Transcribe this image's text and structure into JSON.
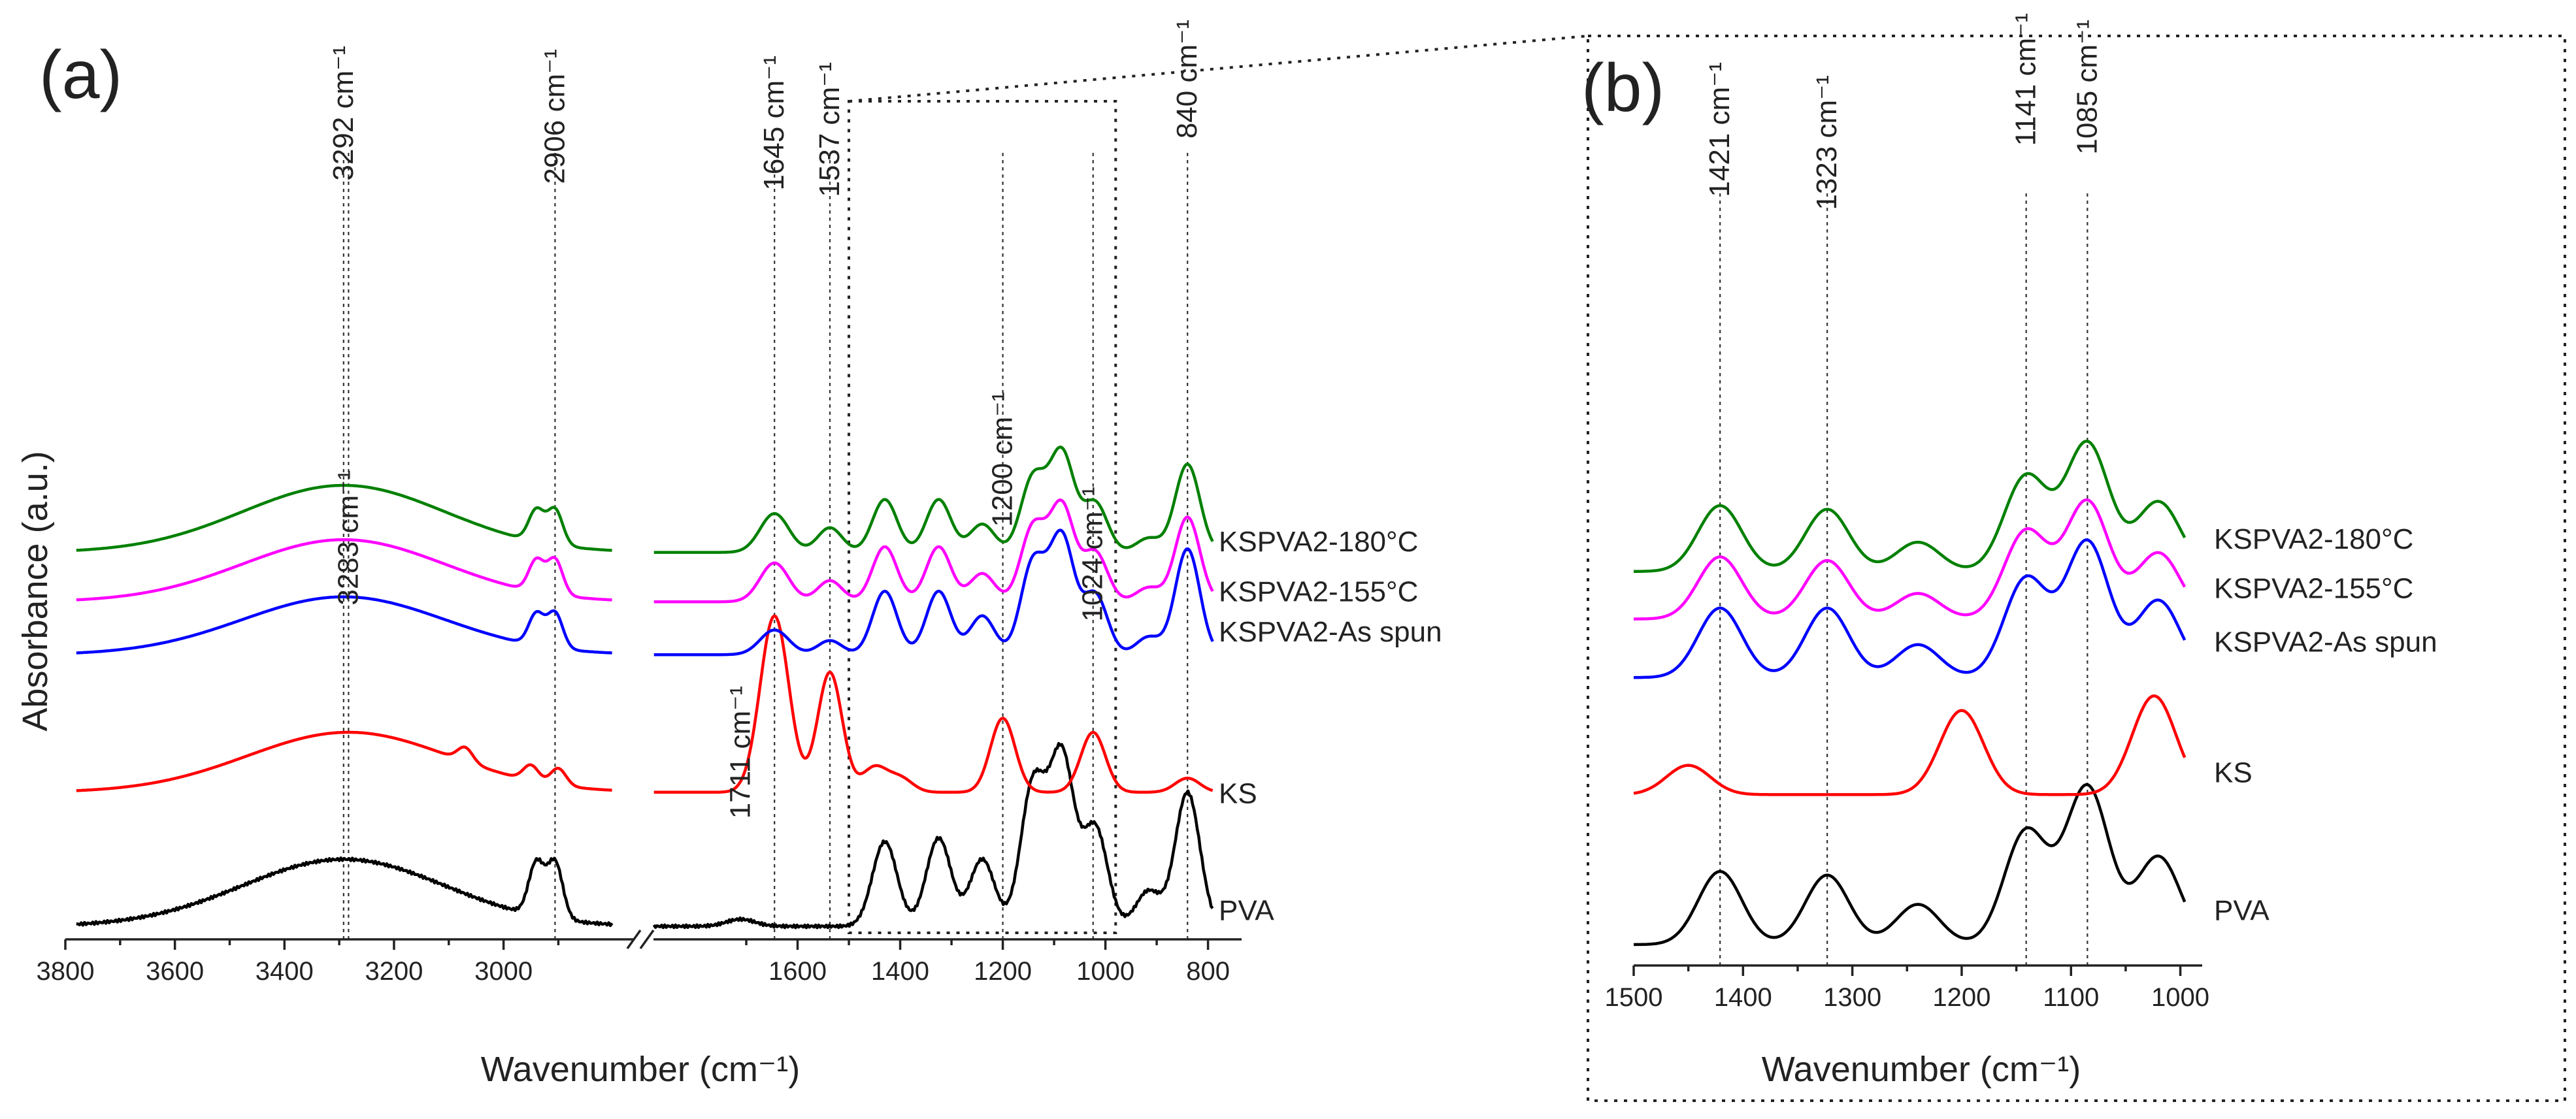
{
  "chart_data": [
    {
      "panel": "(a)",
      "type": "line",
      "xlabel": "Wavenumber (cm⁻¹)",
      "ylabel": "Absorbance (a.u.)",
      "x_axis_broken": true,
      "xlim_left_segment": [
        3800,
        2780
      ],
      "xlim_right_segment": [
        1900,
        760
      ],
      "xticks_left": [
        3800,
        3600,
        3400,
        3200,
        3000
      ],
      "xticks_right": [
        1600,
        1400,
        1200,
        1000,
        800
      ],
      "series": [
        {
          "name": "PVA",
          "color": "#000000",
          "offset": 0.0,
          "peaks": [
            [
              3292,
              0.95
            ],
            [
              2940,
              0.75
            ],
            [
              2906,
              0.8
            ],
            [
              1711,
              0.1
            ],
            [
              1430,
              1.2
            ],
            [
              1325,
              1.25
            ],
            [
              1240,
              0.95
            ],
            [
              1141,
              2.0
            ],
            [
              1085,
              2.4
            ],
            [
              1020,
              1.4
            ],
            [
              916,
              0.5
            ],
            [
              840,
              1.9
            ]
          ]
        },
        {
          "name": "KS",
          "color": "#ff0000",
          "offset": 1.85,
          "peaks": [
            [
              3283,
              0.85
            ],
            [
              3070,
              0.2
            ],
            [
              2950,
              0.22
            ],
            [
              2900,
              0.24
            ],
            [
              1645,
              2.5
            ],
            [
              1537,
              1.7
            ],
            [
              1450,
              0.35
            ],
            [
              1400,
              0.2
            ],
            [
              1200,
              1.05
            ],
            [
              1024,
              0.85
            ],
            [
              840,
              0.2
            ]
          ]
        },
        {
          "name": "KSPVA2-As spun",
          "color": "#0000ff",
          "offset": 3.85,
          "peaks": [
            [
              3292,
              0.82
            ],
            [
              2940,
              0.45
            ],
            [
              2906,
              0.5
            ],
            [
              1645,
              0.35
            ],
            [
              1537,
              0.2
            ],
            [
              1430,
              0.9
            ],
            [
              1325,
              0.9
            ],
            [
              1240,
              0.55
            ],
            [
              1141,
              1.3
            ],
            [
              1085,
              1.65
            ],
            [
              1020,
              0.85
            ],
            [
              916,
              0.25
            ],
            [
              840,
              1.5
            ]
          ]
        },
        {
          "name": "KSPVA2-155°C",
          "color": "#ff00ff",
          "offset": 4.6,
          "peaks": [
            [
              3292,
              0.88
            ],
            [
              2940,
              0.45
            ],
            [
              2906,
              0.5
            ],
            [
              1645,
              0.55
            ],
            [
              1537,
              0.3
            ],
            [
              1430,
              0.78
            ],
            [
              1325,
              0.78
            ],
            [
              1240,
              0.4
            ],
            [
              1141,
              1.05
            ],
            [
              1085,
              1.35
            ],
            [
              1020,
              0.7
            ],
            [
              916,
              0.2
            ],
            [
              840,
              1.2
            ]
          ]
        },
        {
          "name": "KSPVA2-180°C",
          "color": "#008000",
          "offset": 5.3,
          "peaks": [
            [
              3292,
              0.95
            ],
            [
              2940,
              0.45
            ],
            [
              2906,
              0.5
            ],
            [
              1645,
              0.55
            ],
            [
              1537,
              0.35
            ],
            [
              1430,
              0.75
            ],
            [
              1325,
              0.75
            ],
            [
              1240,
              0.4
            ],
            [
              1141,
              1.05
            ],
            [
              1085,
              1.4
            ],
            [
              1020,
              0.7
            ],
            [
              916,
              0.2
            ],
            [
              840,
              1.25
            ]
          ]
        }
      ],
      "peak_labels": [
        "3292 cm⁻¹",
        "2906 cm⁻¹",
        "3283 cm⁻¹",
        "1645 cm⁻¹",
        "1537 cm⁻¹",
        "840 cm⁻¹",
        "1200 cm⁻¹",
        "1024 cm⁻¹",
        "1711 cm⁻¹"
      ],
      "guide_wavenumbers": [
        3292,
        3283,
        2906,
        1645,
        1537,
        1200,
        1024,
        840
      ],
      "zoom_range": [
        1500,
        980
      ]
    },
    {
      "panel": "(b)",
      "type": "line",
      "xlabel": "Wavenumber (cm⁻¹)",
      "xlim": [
        1500,
        980
      ],
      "xticks": [
        1500,
        1400,
        1300,
        1200,
        1100,
        1000
      ],
      "series": [
        {
          "name": "PVA",
          "color": "#000000",
          "offset": 0.0,
          "peaks": [
            [
              1421,
              1.0
            ],
            [
              1323,
              0.95
            ],
            [
              1240,
              0.55
            ],
            [
              1141,
              1.55
            ],
            [
              1085,
              2.15
            ],
            [
              1020,
              1.2
            ]
          ]
        },
        {
          "name": "KS",
          "color": "#ff0000",
          "offset": 2.05,
          "peaks": [
            [
              1450,
              0.4
            ],
            [
              1200,
              1.15
            ],
            [
              1024,
              1.35
            ]
          ]
        },
        {
          "name": "KSPVA2-As spun",
          "color": "#0000ff",
          "offset": 3.65,
          "peaks": [
            [
              1421,
              0.95
            ],
            [
              1323,
              0.95
            ],
            [
              1240,
              0.45
            ],
            [
              1141,
              1.35
            ],
            [
              1085,
              1.85
            ],
            [
              1020,
              1.05
            ]
          ]
        },
        {
          "name": "KSPVA2-155°C",
          "color": "#ff00ff",
          "offset": 4.45,
          "peaks": [
            [
              1421,
              0.85
            ],
            [
              1323,
              0.8
            ],
            [
              1240,
              0.35
            ],
            [
              1141,
              1.2
            ],
            [
              1085,
              1.6
            ],
            [
              1020,
              0.9
            ]
          ]
        },
        {
          "name": "KSPVA2-180°C",
          "color": "#008000",
          "offset": 5.1,
          "peaks": [
            [
              1421,
              0.9
            ],
            [
              1323,
              0.85
            ],
            [
              1240,
              0.4
            ],
            [
              1141,
              1.3
            ],
            [
              1085,
              1.75
            ],
            [
              1020,
              0.95
            ]
          ]
        }
      ],
      "peak_labels": [
        "1421 cm⁻¹",
        "1323 cm⁻¹",
        "1141 cm⁻¹",
        "1085 cm⁻¹"
      ],
      "guide_wavenumbers": [
        1421,
        1323,
        1141,
        1085
      ]
    }
  ]
}
